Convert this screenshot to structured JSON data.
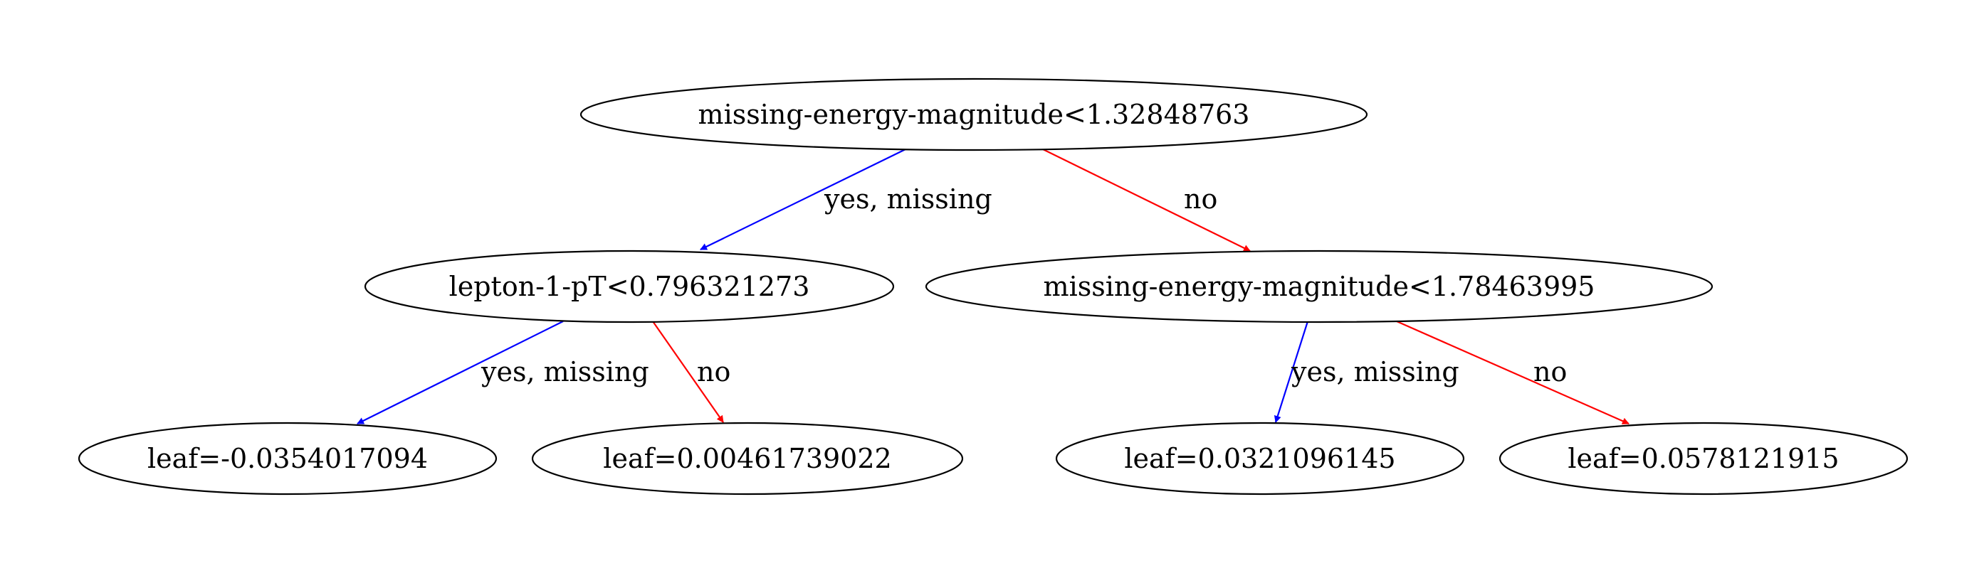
{
  "tree": {
    "nodes": [
      {
        "id": "n0",
        "label": "missing-energy-magnitude<1.32848763",
        "kind": "split"
      },
      {
        "id": "n1",
        "label": "lepton-1-pT<0.796321273",
        "kind": "split"
      },
      {
        "id": "n2",
        "label": "missing-energy-magnitude<1.78463995",
        "kind": "split"
      },
      {
        "id": "n3",
        "label": "leaf=-0.0354017094",
        "kind": "leaf"
      },
      {
        "id": "n4",
        "label": "leaf=0.00461739022",
        "kind": "leaf"
      },
      {
        "id": "n5",
        "label": "leaf=0.0321096145",
        "kind": "leaf"
      },
      {
        "id": "n6",
        "label": "leaf=0.0578121915",
        "kind": "leaf"
      }
    ],
    "edges": [
      {
        "id": "e0",
        "from": "n0",
        "to": "n1",
        "label": "yes, missing",
        "branch": "yes"
      },
      {
        "id": "e1",
        "from": "n0",
        "to": "n2",
        "label": "no",
        "branch": "no"
      },
      {
        "id": "e2",
        "from": "n1",
        "to": "n3",
        "label": "yes, missing",
        "branch": "yes"
      },
      {
        "id": "e3",
        "from": "n1",
        "to": "n4",
        "label": "no",
        "branch": "no"
      },
      {
        "id": "e4",
        "from": "n2",
        "to": "n5",
        "label": "yes, missing",
        "branch": "yes"
      },
      {
        "id": "e5",
        "from": "n2",
        "to": "n6",
        "label": "no",
        "branch": "no"
      }
    ]
  },
  "colors": {
    "yes_edge": "#0000ff",
    "no_edge": "#ff0000",
    "node_stroke": "#000000",
    "background": "#ffffff"
  }
}
